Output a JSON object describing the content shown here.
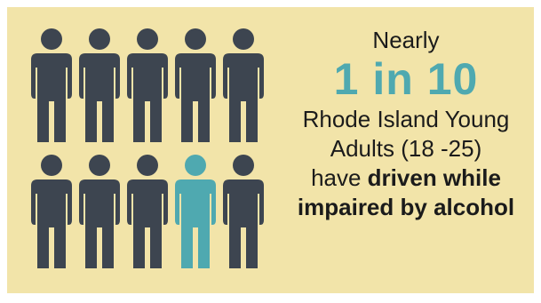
{
  "colors": {
    "background": "#f2e4a9",
    "figure_default": "#3d4550",
    "figure_highlight": "#4fa9b0"
  },
  "figures": {
    "total": 10,
    "highlighted_count": 1,
    "icon": "person-icon"
  },
  "text": {
    "nearly": "Nearly",
    "ratio": "1 in 10",
    "desc_line1": "Rhode Island Young",
    "desc_line2": "Adults (18 -25)",
    "have": "have ",
    "driven_while": "driven while",
    "impaired": "impaired by alcohol"
  }
}
